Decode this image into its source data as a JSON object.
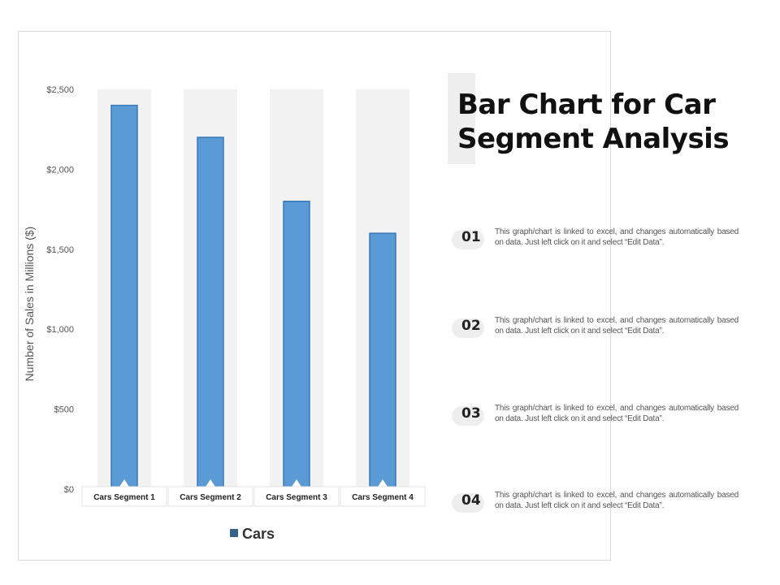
{
  "title": "Bar Chart for Car Segment Analysis",
  "colors": {
    "bar": "#5b9bd5",
    "bar_edge": "#3a78b8",
    "slot": "#f2f2f2",
    "legend": "#35618f"
  },
  "chart_data": {
    "type": "bar",
    "categories": [
      "Cars Segment 1",
      "Cars Segment 2",
      "Cars Segment 3",
      "Cars Segment 4"
    ],
    "series": [
      {
        "name": "Cars",
        "values": [
          2400,
          2200,
          1800,
          1600
        ]
      }
    ],
    "ylabel": "Number of Sales in Millions ($)",
    "xlabel": "",
    "ylim": [
      0,
      2500
    ],
    "yticks": [
      0,
      500,
      1000,
      1500,
      2000,
      2500
    ],
    "ytick_labels": [
      "$0",
      "$500",
      "$1,000",
      "$1,500",
      "$2,000",
      "$2,500"
    ],
    "legend": "bottom",
    "grid": false
  },
  "notes": [
    {
      "number": "01",
      "text": "This graph/chart is linked to excel, and changes automatically based on data. Just left click on it and select “Edit Data”."
    },
    {
      "number": "02",
      "text": "This graph/chart is linked to excel, and changes automatically based on data. Just left click on it and select “Edit Data”."
    },
    {
      "number": "03",
      "text": "This graph/chart is linked to excel, and changes automatically based on data. Just left click on it and select “Edit Data”."
    },
    {
      "number": "04",
      "text": "This graph/chart is linked to excel, and changes automatically based on data. Just left click on it and select “Edit Data”."
    }
  ]
}
